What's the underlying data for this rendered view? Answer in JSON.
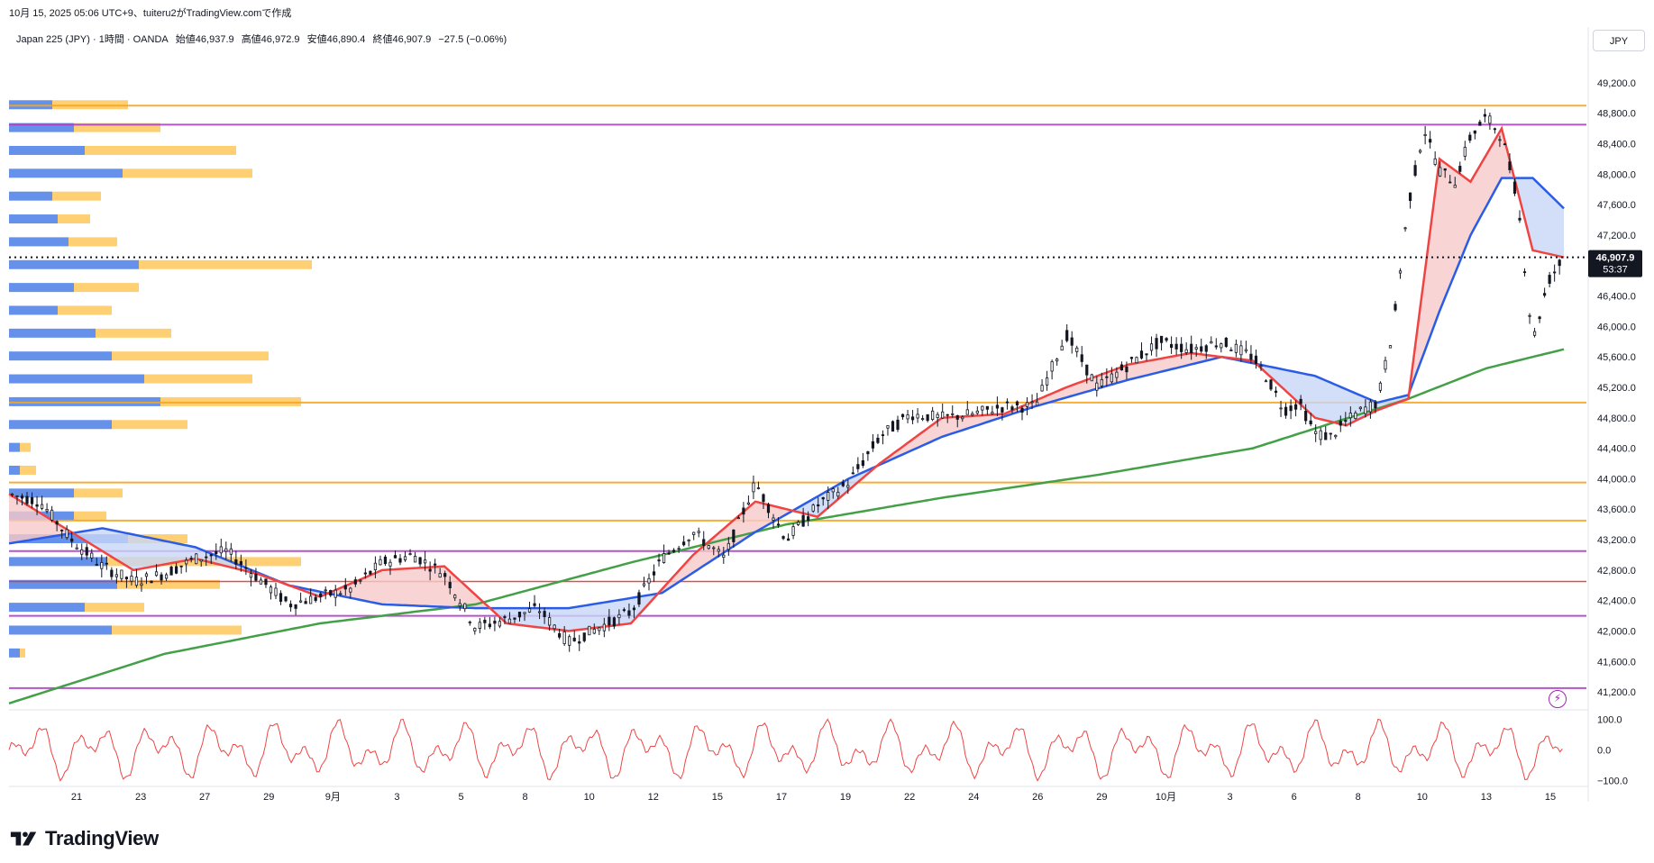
{
  "header": {
    "snapshot_text": "10月 15, 2025 05:06 UTC+9、tuiteru2がTradingView.comで作成"
  },
  "legend": {
    "symbol": "Japan 225 (JPY) · 1時間 · OANDA",
    "open": "始値46,937.9",
    "high": "高値46,972.9",
    "low": "安値46,890.4",
    "close": "終値46,907.9",
    "change": "−27.5 (−0.06%)"
  },
  "currency_button": "JPY",
  "price_label": {
    "price": "46,907.9",
    "countdown": "53:37"
  },
  "brand": "TradingView",
  "colors": {
    "up_candle": "#000000",
    "fast_ma": "#ef4444",
    "mid_ma": "#2b5ce6",
    "slow_ma": "#43a047",
    "fill_bull": "#f8c9c9",
    "fill_bear": "#c8d6f8",
    "vp_blue": "#4a7ee6",
    "vp_orange": "#ffc85a",
    "level_orange": "#f5a623",
    "level_purple": "#b040c8",
    "level_red": "#e53935",
    "oscillator": "#ef4444"
  },
  "chart_data": {
    "type": "line",
    "title": "Japan 225 (JPY) · 1時間 · OANDA",
    "y_axis": {
      "range": [
        41000,
        49400
      ],
      "ticks": [
        "49,200.0",
        "48,800.0",
        "48,400.0",
        "48,000.0",
        "47,600.0",
        "47,200.0",
        "46,800.0",
        "46,400.0",
        "46,000.0",
        "45,600.0",
        "45,200.0",
        "44,800.0",
        "44,400.0",
        "44,000.0",
        "43,600.0",
        "43,200.0",
        "42,800.0",
        "42,400.0",
        "42,000.0",
        "41,600.0",
        "41,200.0"
      ]
    },
    "x_axis": {
      "ticks": [
        "21",
        "23",
        "27",
        "29",
        "9月",
        "3",
        "5",
        "8",
        "10",
        "12",
        "15",
        "17",
        "19",
        "22",
        "24",
        "26",
        "29",
        "10月",
        "3",
        "6",
        "8",
        "10",
        "13",
        "15"
      ]
    },
    "oscillator_axis": {
      "ticks": [
        "100.0",
        "0.0",
        "−100.0"
      ],
      "range": [
        -110,
        110
      ]
    },
    "price_path": {
      "x": [
        0,
        2,
        4,
        6,
        8,
        10,
        12,
        14,
        16,
        18,
        20,
        22,
        24,
        26,
        28,
        30,
        32,
        34,
        36,
        38,
        40,
        42,
        44,
        46,
        48,
        50,
        52,
        54,
        56,
        58,
        60,
        62,
        64,
        66,
        68,
        70,
        72,
        74,
        76,
        78,
        80,
        81,
        82,
        83,
        84,
        85,
        86,
        87,
        88,
        89,
        90,
        91,
        92,
        93,
        94,
        95,
        96,
        97,
        98,
        99,
        100
      ],
      "y": [
        43800,
        43700,
        43200,
        42850,
        42650,
        42750,
        42950,
        43050,
        42700,
        42350,
        42450,
        42550,
        42900,
        43000,
        42750,
        42050,
        42150,
        42300,
        41850,
        42050,
        42250,
        42950,
        43300,
        42950,
        43950,
        43200,
        43650,
        43950,
        44550,
        44850,
        44800,
        44850,
        44950,
        44950,
        45900,
        45200,
        45500,
        45800,
        45700,
        45800,
        45600,
        45300,
        44900,
        45000,
        44600,
        44550,
        44750,
        44900,
        45000,
        45950,
        47600,
        48600,
        48050,
        47900,
        48500,
        48750,
        48500,
        47700,
        45800,
        46600,
        46908
      ]
    },
    "fast_ma": {
      "x": [
        0,
        4,
        8,
        12,
        16,
        20,
        24,
        28,
        32,
        36,
        40,
        44,
        48,
        52,
        56,
        60,
        64,
        68,
        72,
        76,
        80,
        84,
        86,
        88,
        90,
        92,
        94,
        96,
        98,
        100
      ],
      "y": [
        43800,
        43300,
        42800,
        42950,
        42750,
        42450,
        42800,
        42850,
        42100,
        42000,
        42100,
        43000,
        43700,
        43500,
        44200,
        44800,
        44850,
        45200,
        45500,
        45650,
        45550,
        44800,
        44700,
        44900,
        45050,
        48200,
        47900,
        48600,
        47000,
        46908
      ]
    },
    "mid_ma": {
      "x": [
        0,
        6,
        12,
        18,
        24,
        30,
        36,
        42,
        48,
        54,
        60,
        66,
        72,
        78,
        84,
        88,
        90,
        92,
        94,
        96,
        98,
        100
      ],
      "y": [
        43150,
        43350,
        43100,
        42600,
        42350,
        42300,
        42300,
        42500,
        43300,
        44000,
        44550,
        44950,
        45300,
        45600,
        45350,
        45000,
        45100,
        46200,
        47200,
        47950,
        47950,
        47550
      ]
    },
    "slow_ma": {
      "x": [
        0,
        10,
        20,
        30,
        40,
        50,
        60,
        70,
        80,
        90,
        95,
        100
      ],
      "y": [
        41050,
        41700,
        42100,
        42350,
        42900,
        43400,
        43750,
        44050,
        44400,
        45050,
        45450,
        45700
      ]
    },
    "volume_profile": {
      "price_levels": [
        48900,
        48600,
        48300,
        48000,
        47700,
        47400,
        47100,
        46800,
        46500,
        46200,
        45900,
        45600,
        45300,
        45000,
        44700,
        44400,
        44100,
        43800,
        43500,
        43200,
        42900,
        42600,
        42300,
        42000,
        41700
      ],
      "buy": [
        40,
        60,
        70,
        105,
        40,
        45,
        55,
        120,
        60,
        45,
        80,
        95,
        125,
        140,
        95,
        10,
        10,
        60,
        60,
        110,
        90,
        100,
        70,
        95,
        10
      ],
      "sell": [
        70,
        80,
        140,
        120,
        45,
        30,
        45,
        160,
        60,
        50,
        70,
        145,
        100,
        130,
        70,
        10,
        15,
        45,
        30,
        55,
        180,
        95,
        55,
        120,
        5
      ]
    },
    "levels": [
      {
        "price": 48900,
        "kind": "orange"
      },
      {
        "price": 48650,
        "kind": "purple"
      },
      {
        "price": 45000,
        "kind": "orange"
      },
      {
        "price": 43950,
        "kind": "orange"
      },
      {
        "price": 43450,
        "kind": "orange"
      },
      {
        "price": 43050,
        "kind": "purple"
      },
      {
        "price": 42650,
        "kind": "red"
      },
      {
        "price": 42200,
        "kind": "purple"
      },
      {
        "price": 41250,
        "kind": "purple"
      }
    ],
    "last_price": 46907.9
  }
}
